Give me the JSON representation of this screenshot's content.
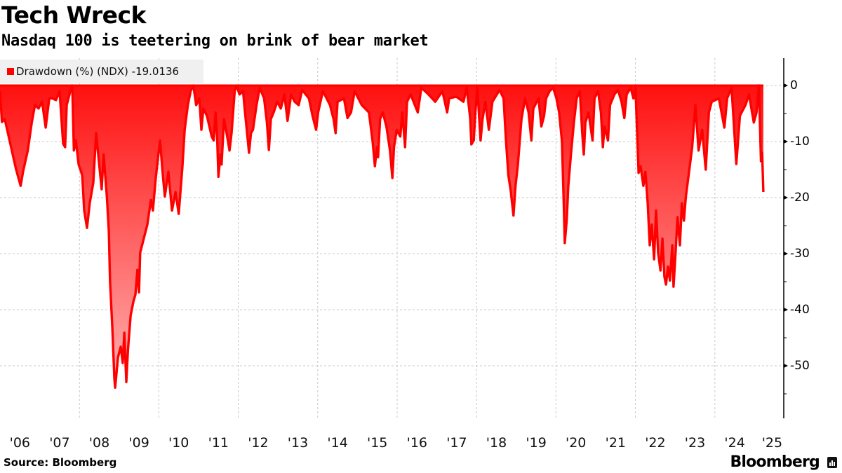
{
  "header": {
    "title": "Tech Wreck",
    "subtitle": "Nasdaq 100 is teetering on brink of bear market"
  },
  "legend": {
    "swatch_color": "#ff0000",
    "label": "Drawdown (%) (NDX) -19.0136"
  },
  "footer": {
    "source": "Source: Bloomberg",
    "brand": "Bloomberg"
  },
  "colors": {
    "line": "#ff0000",
    "fill_top": "#ff1010",
    "fill_bottom": "#ffb3b3",
    "grid": "#c8c8c8",
    "axis": "#000000"
  },
  "chart_data": {
    "type": "area",
    "title": "Tech Wreck",
    "subtitle": "Nasdaq 100 is teetering on brink of bear market",
    "series": [
      {
        "name": "Drawdown (%) (NDX)",
        "last_value": -19.0136
      }
    ],
    "xlabel": "",
    "ylabel": "",
    "x_tick_labels": [
      "'06",
      "'07",
      "'08",
      "'09",
      "'10",
      "'11",
      "'12",
      "'13",
      "'14",
      "'15",
      "'16",
      "'17",
      "'18",
      "'19",
      "'20",
      "'21",
      "'22",
      "'23",
      "'24",
      "'25"
    ],
    "y_ticks": [
      0,
      -10,
      -20,
      -30,
      -40,
      -50
    ],
    "y_tick_labels": [
      "0",
      "-10",
      "-20",
      "-30",
      "-40",
      "-50"
    ],
    "ylim": [
      -59,
      5
    ],
    "xlim": [
      2006.0,
      2025.3
    ],
    "grid": true,
    "legend_position": "top-left",
    "y_axis_position": "right",
    "points": [
      [
        2006.0,
        -1.0
      ],
      [
        2006.05,
        -6.5
      ],
      [
        2006.12,
        -6.0
      ],
      [
        2006.2,
        -8.5
      ],
      [
        2006.28,
        -11.0
      ],
      [
        2006.4,
        -14.8
      ],
      [
        2006.52,
        -17.9
      ],
      [
        2006.58,
        -15.4
      ],
      [
        2006.7,
        -11.6
      ],
      [
        2006.8,
        -6.6
      ],
      [
        2006.88,
        -3.5
      ],
      [
        2006.97,
        -4.1
      ],
      [
        2007.06,
        -2.9
      ],
      [
        2007.15,
        -7.5
      ],
      [
        2007.24,
        -2.3
      ],
      [
        2007.32,
        -2.3
      ],
      [
        2007.41,
        -2.6
      ],
      [
        2007.5,
        -1.0
      ],
      [
        2007.59,
        -10.4
      ],
      [
        2007.64,
        -11.0
      ],
      [
        2007.68,
        -3.5
      ],
      [
        2007.77,
        -1.0
      ],
      [
        2007.82,
        0.0
      ],
      [
        2007.86,
        -11.6
      ],
      [
        2007.91,
        -9.8
      ],
      [
        2007.98,
        -14.1
      ],
      [
        2008.07,
        -16.0
      ],
      [
        2008.12,
        -22.3
      ],
      [
        2008.19,
        -25.4
      ],
      [
        2008.26,
        -21.0
      ],
      [
        2008.35,
        -17.3
      ],
      [
        2008.42,
        -8.5
      ],
      [
        2008.49,
        -13.5
      ],
      [
        2008.56,
        -18.5
      ],
      [
        2008.61,
        -12.3
      ],
      [
        2008.69,
        -19.8
      ],
      [
        2008.74,
        -26.0
      ],
      [
        2008.77,
        -34.8
      ],
      [
        2008.83,
        -43.5
      ],
      [
        2008.88,
        -52.3
      ],
      [
        2008.9,
        -53.9
      ],
      [
        2008.97,
        -48.5
      ],
      [
        2009.04,
        -46.6
      ],
      [
        2009.09,
        -49.5
      ],
      [
        2009.13,
        -44.1
      ],
      [
        2009.18,
        -52.9
      ],
      [
        2009.22,
        -47.3
      ],
      [
        2009.29,
        -41.0
      ],
      [
        2009.36,
        -38.5
      ],
      [
        2009.41,
        -37.3
      ],
      [
        2009.46,
        -32.9
      ],
      [
        2009.5,
        -36.9
      ],
      [
        2009.53,
        -29.8
      ],
      [
        2009.62,
        -27.3
      ],
      [
        2009.71,
        -24.8
      ],
      [
        2009.8,
        -20.4
      ],
      [
        2009.85,
        -22.3
      ],
      [
        2009.92,
        -16.6
      ],
      [
        2009.98,
        -12.8
      ],
      [
        2010.03,
        -9.8
      ],
      [
        2010.1,
        -16.0
      ],
      [
        2010.15,
        -19.8
      ],
      [
        2010.24,
        -15.4
      ],
      [
        2010.33,
        -22.3
      ],
      [
        2010.42,
        -19.0
      ],
      [
        2010.5,
        -22.9
      ],
      [
        2010.59,
        -14.8
      ],
      [
        2010.65,
        -7.9
      ],
      [
        2010.73,
        -3.5
      ],
      [
        2010.8,
        -1.0
      ],
      [
        2010.87,
        0.0
      ],
      [
        2010.94,
        -3.5
      ],
      [
        2011.02,
        -2.3
      ],
      [
        2011.07,
        -7.9
      ],
      [
        2011.12,
        -4.1
      ],
      [
        2011.21,
        -5.4
      ],
      [
        2011.33,
        -9.1
      ],
      [
        2011.38,
        -9.8
      ],
      [
        2011.43,
        -4.8
      ],
      [
        2011.47,
        -9.8
      ],
      [
        2011.5,
        -16.3
      ],
      [
        2011.55,
        -12.3
      ],
      [
        2011.58,
        -14.1
      ],
      [
        2011.64,
        -6.0
      ],
      [
        2011.72,
        -9.1
      ],
      [
        2011.78,
        -11.6
      ],
      [
        2011.83,
        -8.5
      ],
      [
        2011.91,
        -1.0
      ],
      [
        2011.96,
        0.0
      ],
      [
        2012.03,
        -1.6
      ],
      [
        2012.12,
        -1.0
      ],
      [
        2012.17,
        -4.8
      ],
      [
        2012.24,
        -9.8
      ],
      [
        2012.27,
        -12.0
      ],
      [
        2012.32,
        -8.5
      ],
      [
        2012.37,
        -7.9
      ],
      [
        2012.46,
        -3.5
      ],
      [
        2012.54,
        -0.4
      ],
      [
        2012.65,
        -2.3
      ],
      [
        2012.72,
        -6.6
      ],
      [
        2012.77,
        -11.5
      ],
      [
        2012.82,
        -6.0
      ],
      [
        2012.89,
        -4.8
      ],
      [
        2012.98,
        -2.9
      ],
      [
        2013.07,
        -4.1
      ],
      [
        2013.16,
        -1.6
      ],
      [
        2013.24,
        -6.3
      ],
      [
        2013.33,
        -1.6
      ],
      [
        2013.42,
        -2.9
      ],
      [
        2013.52,
        -3.5
      ],
      [
        2013.61,
        -0.8
      ],
      [
        2013.78,
        -2.3
      ],
      [
        2013.87,
        -5.4
      ],
      [
        2013.96,
        -7.9
      ],
      [
        2014.01,
        -4.8
      ],
      [
        2014.13,
        -1.0
      ],
      [
        2014.31,
        -3.5
      ],
      [
        2014.4,
        -6.0
      ],
      [
        2014.45,
        -8.5
      ],
      [
        2014.5,
        -2.9
      ],
      [
        2014.66,
        -2.3
      ],
      [
        2014.75,
        -5.8
      ],
      [
        2014.84,
        -4.8
      ],
      [
        2014.93,
        -1.0
      ],
      [
        2015.11,
        -3.5
      ],
      [
        2015.29,
        -4.8
      ],
      [
        2015.38,
        -9.8
      ],
      [
        2015.44,
        -14.4
      ],
      [
        2015.49,
        -11.0
      ],
      [
        2015.52,
        -12.8
      ],
      [
        2015.57,
        -6.0
      ],
      [
        2015.64,
        -4.8
      ],
      [
        2015.73,
        -7.3
      ],
      [
        2015.82,
        -11.6
      ],
      [
        2015.88,
        -16.5
      ],
      [
        2015.92,
        -11.0
      ],
      [
        2015.99,
        -7.9
      ],
      [
        2016.08,
        -9.1
      ],
      [
        2016.13,
        -4.8
      ],
      [
        2016.2,
        -11.0
      ],
      [
        2016.25,
        -2.9
      ],
      [
        2016.34,
        -1.6
      ],
      [
        2016.52,
        -4.8
      ],
      [
        2016.61,
        -0.4
      ],
      [
        2016.79,
        -1.6
      ],
      [
        2016.96,
        -2.9
      ],
      [
        2017.14,
        -1.0
      ],
      [
        2017.26,
        -4.8
      ],
      [
        2017.31,
        -2.3
      ],
      [
        2017.49,
        -2.0
      ],
      [
        2017.67,
        -2.9
      ],
      [
        2017.75,
        -0.4
      ],
      [
        2017.84,
        -5.8
      ],
      [
        2017.87,
        -10.5
      ],
      [
        2017.93,
        -9.8
      ],
      [
        2017.97,
        -4.8
      ],
      [
        2018.02,
        -0.4
      ],
      [
        2018.1,
        -9.8
      ],
      [
        2018.15,
        -6.0
      ],
      [
        2018.22,
        -2.9
      ],
      [
        2018.31,
        -7.9
      ],
      [
        2018.4,
        -2.9
      ],
      [
        2018.58,
        -0.8
      ],
      [
        2018.68,
        -2.3
      ],
      [
        2018.74,
        -9.8
      ],
      [
        2018.8,
        -16.0
      ],
      [
        2018.86,
        -18.8
      ],
      [
        2018.93,
        -23.2
      ],
      [
        2018.98,
        -17.9
      ],
      [
        2019.04,
        -14.1
      ],
      [
        2019.13,
        -6.0
      ],
      [
        2019.22,
        -2.3
      ],
      [
        2019.31,
        -4.8
      ],
      [
        2019.38,
        -9.8
      ],
      [
        2019.43,
        -4.1
      ],
      [
        2019.56,
        -2.3
      ],
      [
        2019.63,
        -7.3
      ],
      [
        2019.7,
        -5.4
      ],
      [
        2019.75,
        -2.3
      ],
      [
        2019.84,
        -1.0
      ],
      [
        2019.93,
        -0.4
      ],
      [
        2020.01,
        -2.3
      ],
      [
        2020.08,
        -4.8
      ],
      [
        2020.15,
        -10.0
      ],
      [
        2020.19,
        -20.0
      ],
      [
        2020.22,
        -28.1
      ],
      [
        2020.27,
        -24.0
      ],
      [
        2020.31,
        -18.0
      ],
      [
        2020.38,
        -12.0
      ],
      [
        2020.45,
        -6.6
      ],
      [
        2020.52,
        -2.3
      ],
      [
        2020.6,
        -1.0
      ],
      [
        2020.66,
        -8.5
      ],
      [
        2020.7,
        -12.3
      ],
      [
        2020.74,
        -6.6
      ],
      [
        2020.82,
        -4.8
      ],
      [
        2020.92,
        -9.8
      ],
      [
        2020.97,
        -2.3
      ],
      [
        2021.06,
        -1.0
      ],
      [
        2021.13,
        -4.8
      ],
      [
        2021.18,
        -11.0
      ],
      [
        2021.22,
        -7.3
      ],
      [
        2021.31,
        -9.8
      ],
      [
        2021.36,
        -3.5
      ],
      [
        2021.47,
        -1.6
      ],
      [
        2021.56,
        -0.8
      ],
      [
        2021.65,
        -2.9
      ],
      [
        2021.72,
        -5.8
      ],
      [
        2021.78,
        -1.6
      ],
      [
        2021.88,
        -0.4
      ],
      [
        2021.95,
        -2.3
      ],
      [
        2022.0,
        -0.4
      ],
      [
        2022.04,
        -7.9
      ],
      [
        2022.08,
        -15.6
      ],
      [
        2022.13,
        -14.4
      ],
      [
        2022.2,
        -17.9
      ],
      [
        2022.25,
        -15.4
      ],
      [
        2022.31,
        -21.0
      ],
      [
        2022.36,
        -28.5
      ],
      [
        2022.41,
        -24.8
      ],
      [
        2022.47,
        -31.0
      ],
      [
        2022.52,
        -22.3
      ],
      [
        2022.57,
        -29.8
      ],
      [
        2022.63,
        -33.0
      ],
      [
        2022.68,
        -27.3
      ],
      [
        2022.73,
        -34.1
      ],
      [
        2022.77,
        -35.5
      ],
      [
        2022.82,
        -32.3
      ],
      [
        2022.87,
        -34.8
      ],
      [
        2022.93,
        -28.5
      ],
      [
        2022.96,
        -35.9
      ],
      [
        2023.01,
        -29.8
      ],
      [
        2023.06,
        -23.5
      ],
      [
        2023.12,
        -28.5
      ],
      [
        2023.17,
        -21.0
      ],
      [
        2023.22,
        -24.1
      ],
      [
        2023.27,
        -19.8
      ],
      [
        2023.34,
        -16.0
      ],
      [
        2023.43,
        -11.0
      ],
      [
        2023.51,
        -3.5
      ],
      [
        2023.59,
        -11.6
      ],
      [
        2023.68,
        -7.9
      ],
      [
        2023.77,
        -15.0
      ],
      [
        2023.85,
        -4.8
      ],
      [
        2023.92,
        -2.9
      ],
      [
        2024.1,
        -2.3
      ],
      [
        2024.24,
        -7.5
      ],
      [
        2024.31,
        -2.3
      ],
      [
        2024.42,
        -0.4
      ],
      [
        2024.54,
        -14.0
      ],
      [
        2024.63,
        -5.4
      ],
      [
        2024.77,
        -3.5
      ],
      [
        2024.86,
        -1.6
      ],
      [
        2024.98,
        -6.6
      ],
      [
        2025.05,
        -4.8
      ],
      [
        2025.11,
        0.0
      ],
      [
        2025.16,
        -13.5
      ],
      [
        2025.19,
        -12.0
      ],
      [
        2025.22,
        -19.0
      ]
    ]
  }
}
